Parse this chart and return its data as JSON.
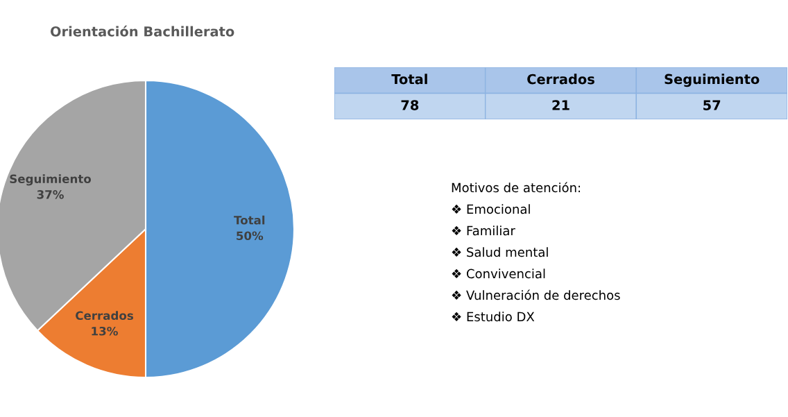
{
  "chart_data": [
    {
      "type": "pie",
      "title": "Orientación Bachillerato",
      "categories": [
        "Total",
        "Cerrados",
        "Seguimiento"
      ],
      "values": [
        50,
        13,
        37
      ],
      "value_labels": [
        "50%",
        "13%",
        "37%"
      ],
      "colors": [
        "#5b9bd5",
        "#ed7d31",
        "#a5a5a5"
      ]
    },
    {
      "type": "other",
      "categories": [
        "Total",
        "Cerrados",
        "Seguimiento"
      ],
      "values": [
        78,
        21,
        57
      ],
      "data_labels": true
    },
    {
      "type": "other",
      "title": "Motivos de atención:",
      "annotations": [
        "❖ Emocional",
        "❖ Familiar",
        "❖ Salud mental",
        "❖ Convivencial",
        "❖ Vulneración de derechos",
        "❖ Estudio DX"
      ]
    }
  ]
}
